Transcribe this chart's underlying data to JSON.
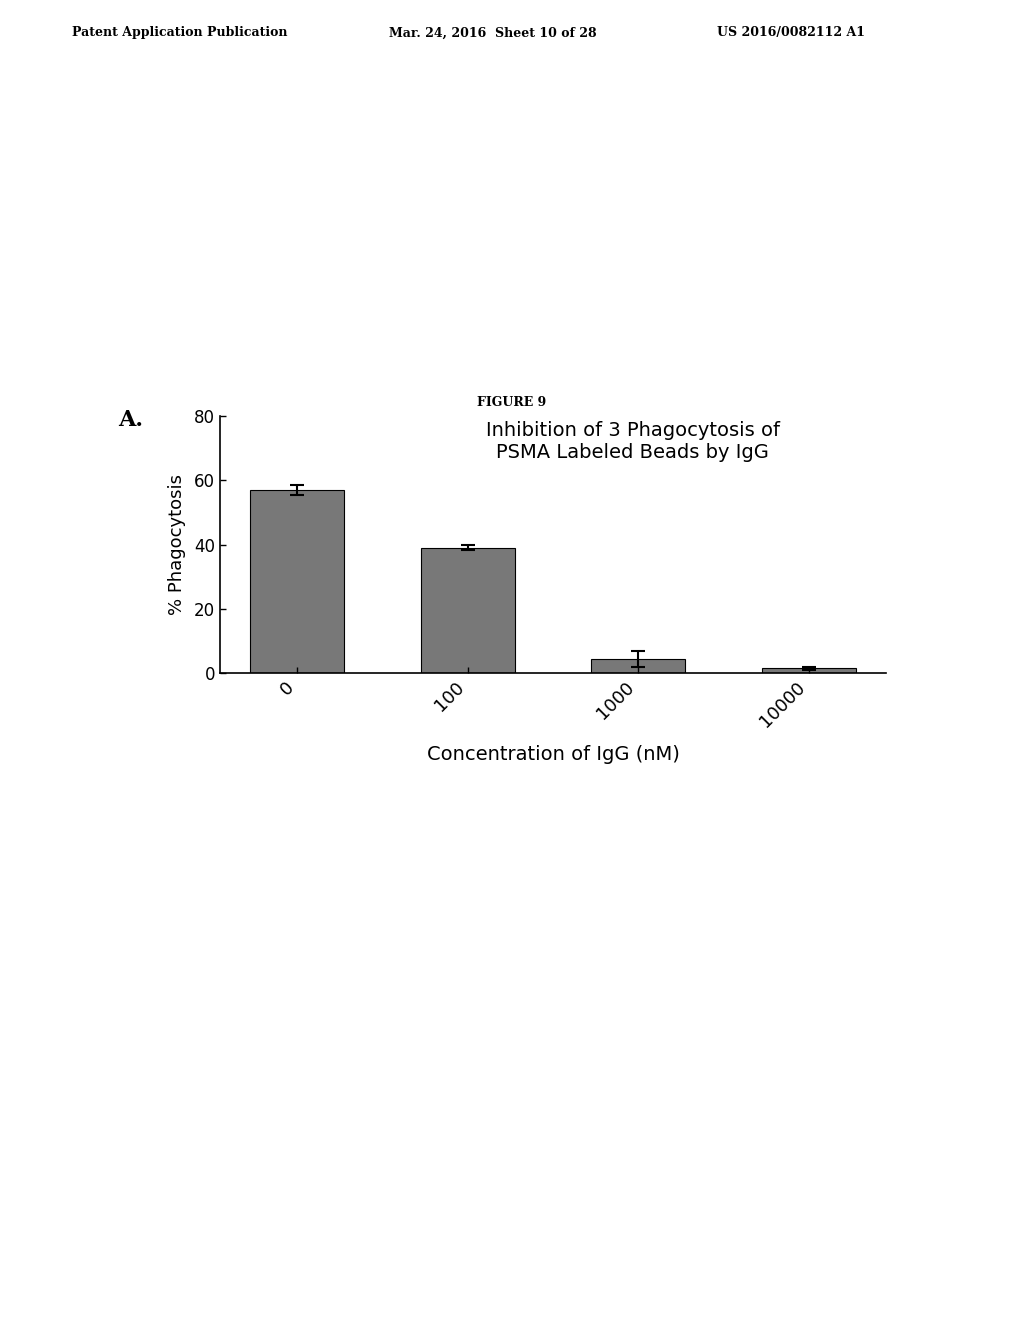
{
  "title_line1": "Inhibition of 3 Phagocytosis of",
  "title_line2": "PSMA Labeled Beads by IgG",
  "xlabel": "Concentration of IgG (nM)",
  "ylabel": "% Phagocytosis",
  "figure_label": "FIGURE 9",
  "panel_label": "A.",
  "header_left": "Patent Application Publication",
  "header_center": "Mar. 24, 2016  Sheet 10 of 28",
  "header_right": "US 2016/0082112 A1",
  "categories": [
    "0",
    "100",
    "1000",
    "10000"
  ],
  "values": [
    57.0,
    39.0,
    4.5,
    1.5
  ],
  "errors": [
    1.5,
    0.8,
    2.5,
    0.4
  ],
  "bar_color": "#787878",
  "ylim": [
    0,
    80
  ],
  "yticks": [
    0,
    20,
    40,
    60,
    80
  ],
  "background_color": "#ffffff",
  "title_bold_word": "3"
}
